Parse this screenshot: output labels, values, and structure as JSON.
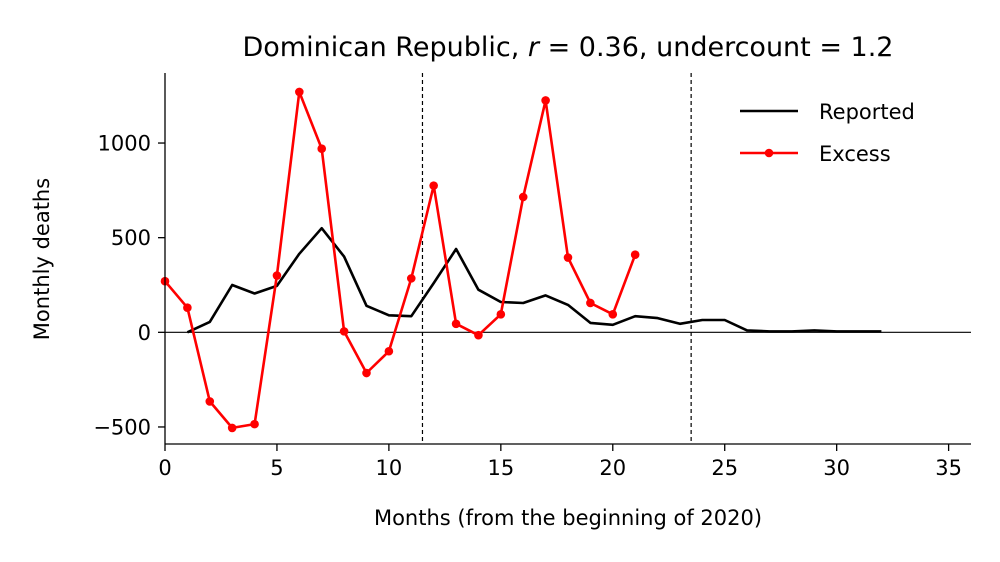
{
  "chart_data": {
    "type": "line",
    "title": "Dominican Republic, r = 0.36, undercount = 1.2",
    "title_parts": {
      "country": "Dominican Republic,",
      "r_label": "r",
      "r_value": "= 0.36,",
      "undercount": "undercount = 1.2"
    },
    "xlabel": "Months (from the beginning of 2020)",
    "ylabel": "Monthly deaths",
    "xlim": [
      0,
      36
    ],
    "ylim": [
      -590,
      1370
    ],
    "xticks": [
      0,
      5,
      10,
      15,
      20,
      25,
      30,
      35
    ],
    "xtick_labels": [
      "0",
      "5",
      "10",
      "15",
      "20",
      "25",
      "30",
      "35"
    ],
    "yticks": [
      -500,
      0,
      500,
      1000
    ],
    "ytick_labels": [
      "−500",
      "0",
      "500",
      "1000"
    ],
    "vlines": [
      11.5,
      23.5
    ],
    "hline": 0,
    "legend_position": "top-right",
    "grid": false,
    "series": [
      {
        "name": "Reported",
        "color": "#000000",
        "marker": "none",
        "x": [
          1,
          2,
          3,
          4,
          5,
          6,
          7,
          8,
          9,
          10,
          11,
          12,
          13,
          14,
          15,
          16,
          17,
          18,
          19,
          20,
          21,
          22,
          23,
          24,
          25,
          26,
          27,
          28,
          29,
          30,
          31,
          32
        ],
        "values": [
          0,
          55,
          250,
          205,
          245,
          415,
          550,
          400,
          140,
          90,
          85,
          260,
          440,
          225,
          160,
          155,
          195,
          145,
          50,
          40,
          85,
          75,
          45,
          65,
          65,
          10,
          5,
          5,
          10,
          5,
          5,
          5
        ]
      },
      {
        "name": "Excess",
        "color": "#ff0000",
        "marker": "circle",
        "x": [
          0,
          1,
          2,
          3,
          4,
          5,
          6,
          7,
          8,
          9,
          10,
          11,
          12,
          13,
          14,
          15,
          16,
          17,
          18,
          19,
          20,
          21
        ],
        "values": [
          270,
          130,
          -365,
          -505,
          -485,
          300,
          1270,
          970,
          5,
          -215,
          -100,
          285,
          775,
          45,
          -15,
          95,
          715,
          1225,
          395,
          155,
          95,
          410
        ]
      }
    ]
  }
}
